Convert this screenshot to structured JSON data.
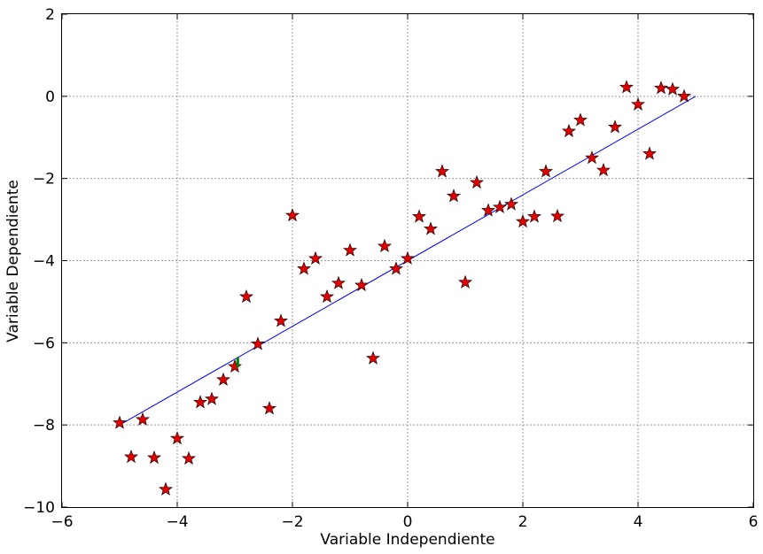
{
  "chart_data": {
    "type": "scatter",
    "xlabel": "Variable Independiente",
    "ylabel": "Variable Dependiente",
    "xlim": [
      -6,
      6
    ],
    "ylim": [
      -10,
      2
    ],
    "xticks": [
      -6,
      -4,
      -2,
      0,
      2,
      4,
      6
    ],
    "yticks": [
      -10,
      -8,
      -6,
      -4,
      -2,
      0,
      2
    ],
    "grid": true,
    "marker_color": "#e00000",
    "line_color": "#0000ff",
    "highlight_color": "#008000",
    "series": [
      {
        "type": "scatter",
        "marker": "star",
        "points": [
          [
            -5.0,
            -7.95
          ],
          [
            -4.8,
            -8.78
          ],
          [
            -4.6,
            -7.87
          ],
          [
            -4.4,
            -8.8
          ],
          [
            -4.2,
            -9.57
          ],
          [
            -4.0,
            -8.33
          ],
          [
            -3.8,
            -8.82
          ],
          [
            -3.6,
            -7.45
          ],
          [
            -3.4,
            -7.37
          ],
          [
            -3.2,
            -6.9
          ],
          [
            -3.0,
            -6.58
          ],
          [
            -2.8,
            -4.88
          ],
          [
            -2.6,
            -6.03
          ],
          [
            -2.4,
            -7.6
          ],
          [
            -2.2,
            -5.47
          ],
          [
            -2.0,
            -2.9
          ],
          [
            -1.8,
            -4.2
          ],
          [
            -1.6,
            -3.95
          ],
          [
            -1.4,
            -4.88
          ],
          [
            -1.2,
            -4.55
          ],
          [
            -1.0,
            -3.75
          ],
          [
            -0.8,
            -4.6
          ],
          [
            -0.6,
            -6.38
          ],
          [
            -0.4,
            -3.65
          ],
          [
            -0.2,
            -4.2
          ],
          [
            0.0,
            -3.95
          ],
          [
            0.2,
            -2.93
          ],
          [
            0.4,
            -3.23
          ],
          [
            0.6,
            -1.83
          ],
          [
            0.8,
            -2.43
          ],
          [
            1.0,
            -4.53
          ],
          [
            1.2,
            -2.1
          ],
          [
            1.4,
            -2.78
          ],
          [
            1.6,
            -2.7
          ],
          [
            1.8,
            -2.63
          ],
          [
            2.0,
            -3.05
          ],
          [
            2.2,
            -2.93
          ],
          [
            2.4,
            -1.83
          ],
          [
            2.6,
            -2.92
          ],
          [
            2.8,
            -0.85
          ],
          [
            3.0,
            -0.58
          ],
          [
            3.2,
            -1.5
          ],
          [
            3.4,
            -1.8
          ],
          [
            3.6,
            -0.75
          ],
          [
            3.8,
            0.22
          ],
          [
            4.0,
            -0.2
          ],
          [
            4.2,
            -1.4
          ],
          [
            4.4,
            0.2
          ],
          [
            4.6,
            0.17
          ],
          [
            4.8,
            0.0
          ]
        ]
      },
      {
        "type": "line",
        "points": [
          [
            -5.0,
            -8.0
          ],
          [
            5.0,
            0.0
          ]
        ]
      },
      {
        "type": "segment",
        "points": [
          [
            -2.95,
            -6.6
          ],
          [
            -2.95,
            -6.35
          ]
        ]
      }
    ]
  }
}
